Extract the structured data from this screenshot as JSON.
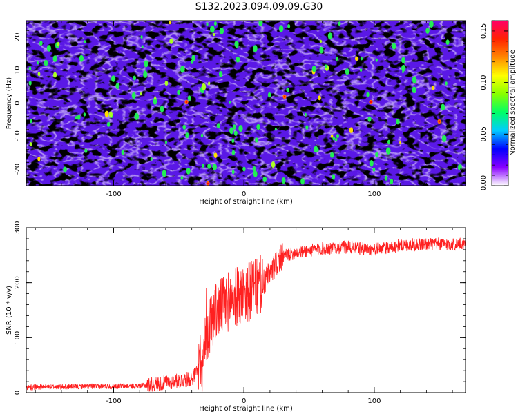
{
  "figure": {
    "title": "S132.2023.094.09.09.G30"
  },
  "chart_data": [
    {
      "type": "heatmap",
      "xlabel": "Height of straight line (km)",
      "ylabel": "Frequency (Hz)",
      "xlim": [
        -167,
        170
      ],
      "ylim": [
        -25,
        25
      ],
      "x_ticks": [
        -100,
        0,
        100
      ],
      "y_ticks": [
        -20,
        -10,
        0,
        10,
        20
      ],
      "colorbar": {
        "label": "Normalized spectral amplitude",
        "range": [
          0.0,
          0.16
        ],
        "ticks": [
          "0.00",
          "0.05",
          "0.10",
          "0.15"
        ],
        "colors": [
          "#ffffff",
          "#8800ff",
          "#0000ff",
          "#00ccff",
          "#00ff66",
          "#88ff00",
          "#ffff00",
          "#ff8800",
          "#ff2200",
          "#ff0066"
        ]
      }
    },
    {
      "type": "line",
      "xlabel": "Height of straight line (km)",
      "ylabel": "SNR (10 * v/v)",
      "xlim": [
        -167,
        170
      ],
      "ylim": [
        0,
        300
      ],
      "x_ticks": [
        -100,
        0,
        100
      ],
      "y_ticks": [
        0,
        100,
        200,
        300
      ],
      "color": "#ff2020",
      "envelope": {
        "x": [
          -167,
          -80,
          -60,
          -40,
          -32,
          -28,
          -24,
          -20,
          -15,
          -10,
          -5,
          0,
          5,
          10,
          15,
          20,
          25,
          30,
          40,
          60,
          80,
          100,
          120,
          140,
          170
        ],
        "y": [
          10,
          12,
          18,
          25,
          55,
          110,
          140,
          150,
          160,
          170,
          175,
          180,
          185,
          190,
          200,
          215,
          235,
          248,
          255,
          262,
          265,
          260,
          268,
          270,
          270
        ]
      }
    }
  ]
}
